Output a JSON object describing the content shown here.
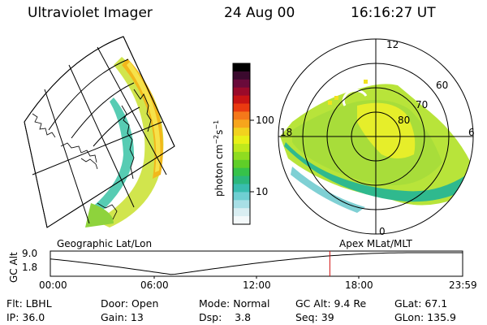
{
  "header": {
    "title": "Ultraviolet Imager",
    "date": "24 Aug 00",
    "time": "16:16:27 UT"
  },
  "colorbar": {
    "unit_label": "photon cm",
    "unit_exp1": "−2",
    "unit_mid": "s",
    "unit_exp2": "−1",
    "tick_labels": [
      "100",
      "10"
    ],
    "colors": [
      "#000000",
      "#3b0a2e",
      "#6a0a3a",
      "#9a0a2a",
      "#c81414",
      "#ea3a10",
      "#f5781a",
      "#f7a51c",
      "#f2d21e",
      "#e8f018",
      "#bfe81c",
      "#8fdc20",
      "#5fce28",
      "#36c24a",
      "#2bb77c",
      "#39bdaf",
      "#6fcfd2",
      "#a8dfe6",
      "#d9eef2",
      "#f4f9fa"
    ]
  },
  "panels": {
    "left_label": "Geographic Lat/Lon",
    "right_label": "Apex MLat/MLT"
  },
  "polar": {
    "mlt_labels": [
      "12",
      "18",
      "6",
      "0"
    ],
    "mlat_labels": [
      "60",
      "70",
      "80"
    ]
  },
  "timeline": {
    "axis_title": "GC Alt",
    "y_ticks": [
      "9.0",
      "1.8"
    ],
    "x_ticks": [
      "00:00",
      "06:00",
      "12:00",
      "18:00",
      "23:59"
    ],
    "marker_time_hours": 16.27
  },
  "info": {
    "row1": [
      "Flt: LBHL",
      "Door: Open",
      "Mode: Normal",
      "GC Alt: 9.4 Re",
      "GLat: 67.1"
    ],
    "row2": [
      "IP: 36.0",
      "Gain: 13",
      "Dsp:    3.8",
      "Seq: 39",
      "GLon: 135.9"
    ]
  }
}
